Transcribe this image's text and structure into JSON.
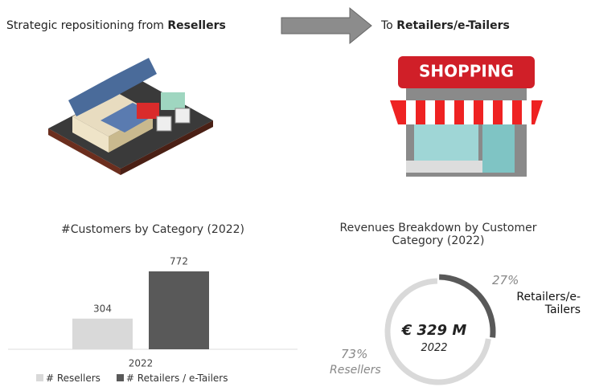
{
  "header": {
    "left_prefix": "Strategic repositioning from",
    "left_bold": "Resellers",
    "right_prefix": "To",
    "right_bold": "Retailers/e-Tailers",
    "shop_sign": "SHOPPING"
  },
  "chart_data": [
    {
      "type": "bar",
      "title": "#Customers by Category (2022)",
      "categories": [
        "2022"
      ],
      "series": [
        {
          "name": "# Resellers",
          "color": "#d9d9d9",
          "values": [
            304
          ]
        },
        {
          "name": "# Retailers / e-Tailers",
          "color": "#595959",
          "values": [
            772
          ]
        }
      ]
    },
    {
      "type": "pie",
      "title": "Revenues Breakdown by Customer Category (2022)",
      "categories": [
        "Retailers/e-Tailers",
        "Resellers"
      ],
      "values": [
        27,
        73
      ],
      "value_labels": [
        "27%",
        "73%"
      ],
      "colors": [
        "#595959",
        "#d9d9d9"
      ],
      "center_value": "€ 329 M",
      "center_label": "2022"
    }
  ]
}
